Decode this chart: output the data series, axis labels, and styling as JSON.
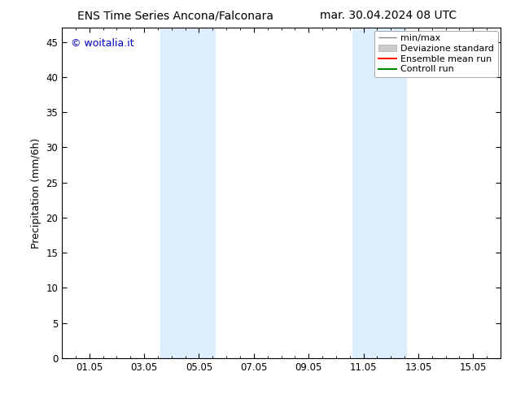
{
  "title_left": "ENS Time Series Ancona/Falconara",
  "title_right": "mar. 30.04.2024 08 UTC",
  "ylabel": "Precipitation (mm/6h)",
  "watermark": "© woitalia.it",
  "watermark_color": "#0000bb",
  "ylim": [
    0,
    47
  ],
  "yticks": [
    0,
    5,
    10,
    15,
    20,
    25,
    30,
    35,
    40,
    45
  ],
  "xtick_labels": [
    "01.05",
    "03.05",
    "05.05",
    "07.05",
    "09.05",
    "11.05",
    "13.05",
    "15.05"
  ],
  "xtick_positions": [
    1,
    3,
    5,
    7,
    9,
    11,
    13,
    15
  ],
  "x_min": 0.0,
  "x_max": 16.0,
  "blue_bands": [
    {
      "start": 3.6,
      "end": 5.6
    },
    {
      "start": 10.6,
      "end": 12.6
    }
  ],
  "blue_band_color": "#ddeeff",
  "legend_items": [
    {
      "label": "min/max",
      "color": "#aaaaaa",
      "lw": 1.0
    },
    {
      "label": "Deviazione standard",
      "color": "#cccccc",
      "lw": 6
    },
    {
      "label": "Ensemble mean run",
      "color": "#ff0000",
      "lw": 1.5
    },
    {
      "label": "Controll run",
      "color": "#008800",
      "lw": 1.5
    }
  ],
  "background_color": "#ffffff",
  "plot_bg_color": "#ffffff",
  "tick_fontsize": 8.5,
  "label_fontsize": 9,
  "title_fontsize": 10,
  "legend_fontsize": 8
}
